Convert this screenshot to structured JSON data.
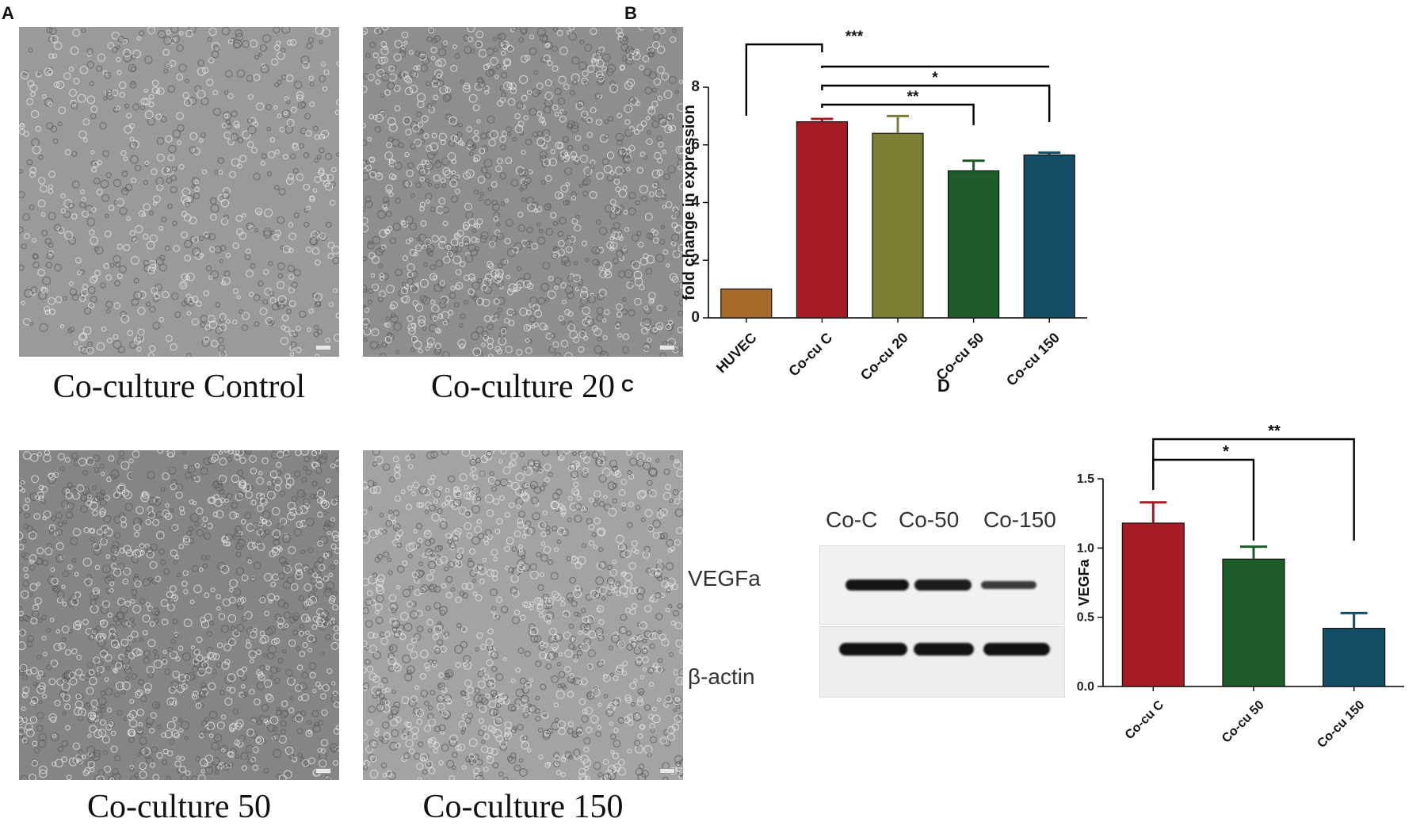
{
  "panels": {
    "A": "A",
    "B": "B",
    "C": "C",
    "D": "D"
  },
  "micrographs": [
    {
      "caption": "Co-culture Control",
      "tone": "#9a9a9a",
      "density": 0.55
    },
    {
      "caption": "Co-culture 20",
      "tone": "#8e8e8e",
      "density": 0.85
    },
    {
      "caption": "Co-culture 50",
      "tone": "#858585",
      "density": 0.95
    },
    {
      "caption": "Co-culture 150",
      "tone": "#a3a3a3",
      "density": 0.9
    }
  ],
  "western_blot": {
    "lanes": [
      "Co-C",
      "Co-50",
      "Co-150"
    ],
    "rows": [
      {
        "label": "VEGFa",
        "band_intensity": [
          0.95,
          0.9,
          0.6
        ]
      },
      {
        "label": "β-actin",
        "band_intensity": [
          1.0,
          0.95,
          1.0
        ]
      }
    ]
  },
  "chart_data": [
    {
      "type": "bar",
      "panel": "B",
      "categories": [
        "HUVEC",
        "Co-cu C",
        "Co-cu 20",
        "Co-cu 50",
        "Co-cu 150"
      ],
      "values": [
        1.0,
        6.8,
        6.4,
        5.1,
        5.65
      ],
      "errors": [
        0.0,
        0.1,
        0.6,
        0.35,
        0.08
      ],
      "colors": [
        "#a86a2a",
        "#a51c24",
        "#7c7e34",
        "#1e5c2a",
        "#134d66"
      ],
      "ylabel": "fold change in expression",
      "ylim": [
        0,
        8
      ],
      "yticks": [
        "0",
        "2",
        "4",
        "6",
        "8"
      ],
      "significance": [
        {
          "from": 0,
          "to": 1,
          "label": "***"
        },
        {
          "from": 1,
          "to": 4,
          "label": ""
        },
        {
          "from": 1,
          "to": 4,
          "label": "*"
        },
        {
          "from": 1,
          "to": 3,
          "label": "**"
        }
      ]
    },
    {
      "type": "bar",
      "panel": "D",
      "categories": [
        "Co-cu C",
        "Co-cu 50",
        "Co-cu 150"
      ],
      "values": [
        1.18,
        0.92,
        0.42
      ],
      "errors": [
        0.15,
        0.09,
        0.11
      ],
      "colors": [
        "#a51c24",
        "#1e5c2a",
        "#134d66"
      ],
      "ylabel": "VEGFa",
      "ylim": [
        0,
        1.5
      ],
      "yticks": [
        "0.0",
        "0.5",
        "1.0",
        "1.5"
      ],
      "significance": [
        {
          "from": 0,
          "to": 1,
          "label": "*"
        },
        {
          "from": 0,
          "to": 2,
          "label": "**"
        }
      ]
    }
  ]
}
